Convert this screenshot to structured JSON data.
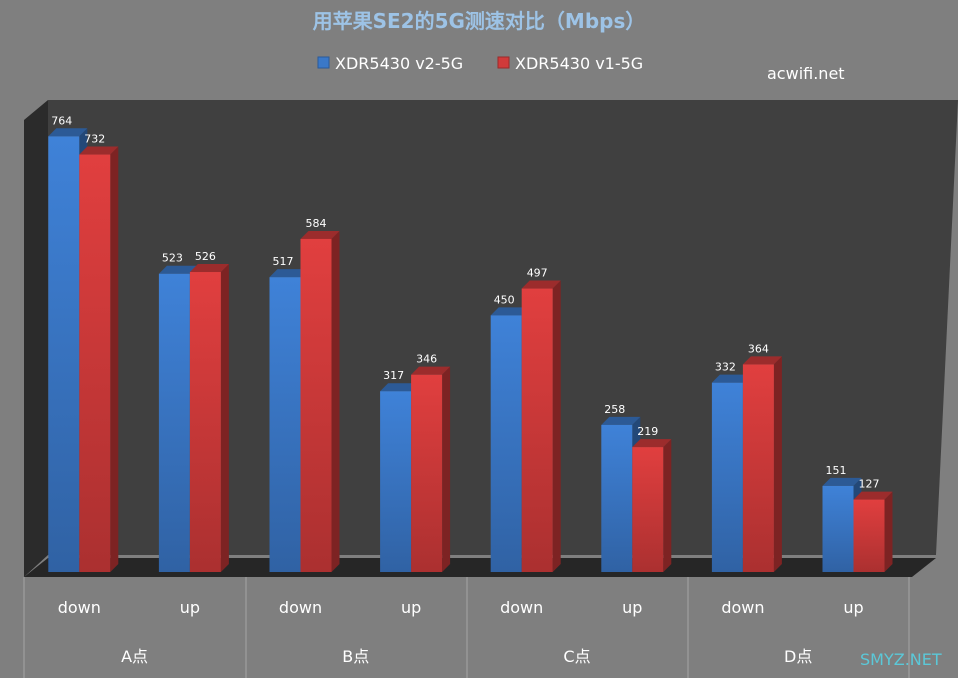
{
  "watermarks": {
    "top_right": "acwifi.net",
    "bottom_right": "SMYZ.NET"
  },
  "colors": {
    "series1": "#3a78c8",
    "series2": "#d03a3a",
    "plot_back": "#3f3f3f",
    "plot_side": "#2a2a2a"
  },
  "chart_data": {
    "type": "bar",
    "title": "用苹果SE2的5G测速对比（Mbps）",
    "xlabel": "",
    "ylabel": "",
    "ylim": [
      0,
      800
    ],
    "grid": false,
    "legend_position": "top",
    "groups": [
      "A点",
      "B点",
      "C点",
      "D点"
    ],
    "categories": [
      "down",
      "up",
      "down",
      "up",
      "down",
      "up",
      "down",
      "up"
    ],
    "series": [
      {
        "name": "XDR5430 v2-5G",
        "values": [
          764,
          523,
          517,
          317,
          450,
          258,
          332,
          151
        ]
      },
      {
        "name": "XDR5430 v1-5G",
        "values": [
          732,
          526,
          584,
          346,
          497,
          219,
          364,
          127
        ]
      }
    ]
  }
}
